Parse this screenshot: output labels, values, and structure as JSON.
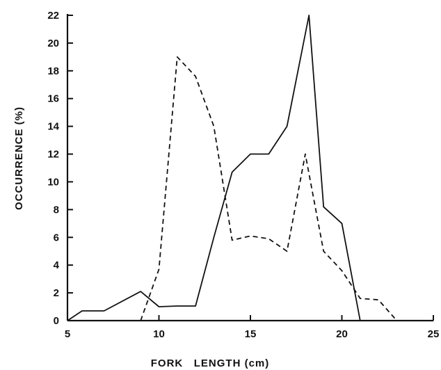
{
  "chart_data": {
    "type": "line",
    "title": "",
    "xlabel": "FORK   LENGTH (cm)",
    "ylabel": "OCCURRENCE (%)",
    "xlim": [
      5,
      25
    ],
    "ylim": [
      0,
      22
    ],
    "xticks": [
      5,
      10,
      15,
      20,
      25
    ],
    "yticks": [
      0,
      2,
      4,
      6,
      8,
      10,
      12,
      14,
      16,
      18,
      20,
      22
    ],
    "grid": false,
    "legend": "none",
    "series": [
      {
        "style": "solid",
        "x": [
          5,
          5.8,
          7,
          9,
          10,
          11,
          12,
          13,
          14,
          15,
          16,
          17,
          18.2,
          19,
          20,
          21
        ],
        "y": [
          0,
          0.7,
          0.7,
          2.1,
          1.0,
          1.05,
          1.05,
          6.0,
          10.7,
          12.0,
          12.0,
          14.0,
          22.0,
          8.2,
          7.0,
          0
        ]
      },
      {
        "style": "dashed",
        "x": [
          9,
          10,
          11,
          12,
          13,
          14,
          15,
          16,
          17,
          18,
          19,
          20,
          21,
          22,
          23
        ],
        "y": [
          0,
          3.7,
          19.0,
          17.6,
          14.0,
          5.8,
          6.1,
          5.9,
          5.0,
          12.0,
          5.0,
          3.6,
          1.6,
          1.5,
          0
        ]
      }
    ]
  }
}
